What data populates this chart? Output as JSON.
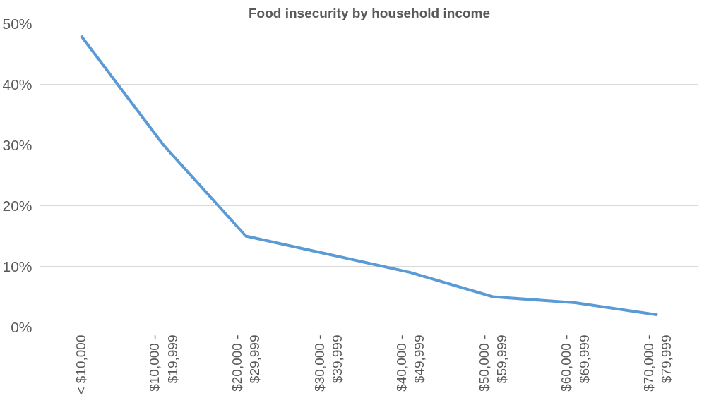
{
  "chart_data": {
    "type": "line",
    "title": "Food insecurity by household income",
    "categories": [
      "< $10,000",
      "$10,000 -\n$19,999",
      "$20,000 -\n$29,999",
      "$30,000 -\n$39,999",
      "$40,000 -\n$49,999",
      "$50,000 -\n$59,999",
      "$60,000 -\n$69,999",
      "$70,000 -\n$79,999"
    ],
    "series": [
      {
        "color": "#5b9bd5",
        "values": [
          48,
          30,
          15,
          12,
          9,
          5,
          4,
          2
        ]
      }
    ],
    "ylim": [
      0,
      50
    ],
    "yticks": [
      {
        "value": 0,
        "label": "0%"
      },
      {
        "value": 10,
        "label": "10%"
      },
      {
        "value": 20,
        "label": "20%"
      },
      {
        "value": 30,
        "label": "30%"
      },
      {
        "value": 40,
        "label": "40%"
      },
      {
        "value": 50,
        "label": "50%"
      }
    ],
    "grid": "y",
    "marker": "none",
    "line_style": "solid"
  }
}
